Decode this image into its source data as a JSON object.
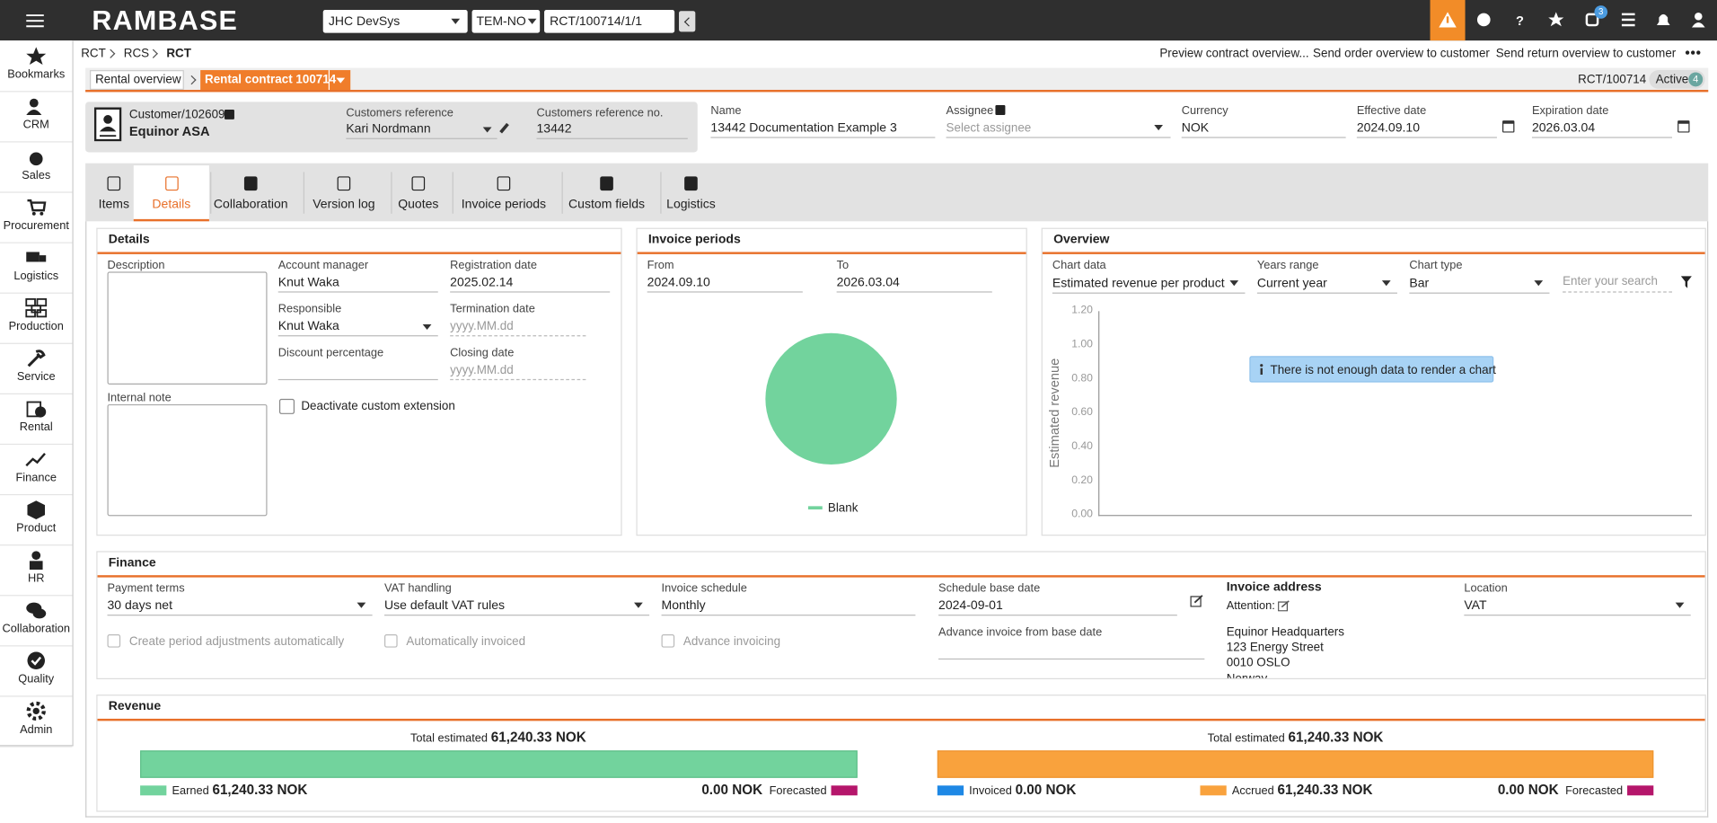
{
  "topbar": {
    "logo": "RAMBASE",
    "company": "JHC DevSys",
    "locale": "TEM-NO",
    "document": "RCT/100714/1/1",
    "notification_badge": "3"
  },
  "sidebar": [
    "Bookmarks",
    "CRM",
    "Sales",
    "Procurement",
    "Logistics",
    "Production",
    "Service",
    "Rental",
    "Finance",
    "Product",
    "HR",
    "Collaboration",
    "Quality",
    "Admin"
  ],
  "breadcrumb": [
    "RCT",
    "RCS",
    "RCT"
  ],
  "actions": [
    "Preview contract overview...",
    "Send order overview to customer",
    "Send return overview to customer"
  ],
  "nav_tabs": [
    "Rental overview",
    "Rental contract 100714"
  ],
  "status": {
    "id": "RCT/100714",
    "state": "Active",
    "count": "4"
  },
  "header": {
    "customer_label": "Customer/102609",
    "customer_name": "Equinor ASA",
    "customers_reference": {
      "label": "Customers reference",
      "value": "Kari Nordmann"
    },
    "customers_reference_no": {
      "label": "Customers reference no.",
      "value": "13442"
    },
    "name": {
      "label": "Name",
      "value": "13442 Documentation Example 3"
    },
    "assignee": {
      "label": "Assignee",
      "placeholder": "Select assignee"
    },
    "currency": {
      "label": "Currency",
      "value": "NOK"
    },
    "effective_date": {
      "label": "Effective date",
      "value": "2024.09.10"
    },
    "expiration_date": {
      "label": "Expiration date",
      "value": "2026.03.04"
    }
  },
  "tabs": [
    "Items",
    "Details",
    "Collaboration",
    "Version log",
    "Quotes",
    "Invoice periods",
    "Custom fields",
    "Logistics"
  ],
  "details": {
    "title": "Details",
    "description": "Description",
    "internal_note": "Internal note",
    "account_manager": {
      "label": "Account manager",
      "value": "Knut Waka"
    },
    "responsible": {
      "label": "Responsible",
      "value": "Knut Waka"
    },
    "discount_percentage": {
      "label": "Discount percentage"
    },
    "registration_date": {
      "label": "Registration date",
      "value": "2025.02.14"
    },
    "termination_date": {
      "label": "Termination date",
      "placeholder": "yyyy.MM.dd"
    },
    "closing_date": {
      "label": "Closing date",
      "placeholder": "yyyy.MM.dd"
    },
    "deactivate": "Deactivate custom extension"
  },
  "invoice_periods": {
    "title": "Invoice periods",
    "from": {
      "label": "From",
      "value": "2024.09.10"
    },
    "to": {
      "label": "To",
      "value": "2026.03.04"
    },
    "legend": "Blank"
  },
  "overview": {
    "title": "Overview",
    "chart_data": {
      "label": "Chart data",
      "value": "Estimated revenue per product"
    },
    "years_range": {
      "label": "Years range",
      "value": "Current year"
    },
    "chart_type": {
      "label": "Chart type",
      "value": "Bar"
    },
    "search_placeholder": "Enter your search",
    "y_label": "Estimated revenue",
    "y_ticks": [
      "1.20",
      "1.00",
      "0.80",
      "0.60",
      "0.40",
      "0.20",
      "0.00"
    ],
    "message": "There is not enough data to render a chart"
  },
  "finance": {
    "title": "Finance",
    "payment_terms": {
      "label": "Payment terms",
      "value": "30 days net"
    },
    "vat_handling": {
      "label": "VAT handling",
      "value": "Use default VAT rules"
    },
    "invoice_schedule": {
      "label": "Invoice schedule",
      "value": "Monthly"
    },
    "schedule_base_date": {
      "label": "Schedule base date",
      "value": "2024-09-01"
    },
    "advance_invoice": {
      "label": "Advance invoice from base date"
    },
    "checkboxes": [
      "Create period adjustments automatically",
      "Automatically invoiced",
      "Advance invoicing"
    ],
    "invoice_address": {
      "label": "Invoice address",
      "attention": "Attention:",
      "lines": [
        "Equinor Headquarters",
        "123 Energy Street",
        "0010 OSLO",
        "Norway"
      ]
    },
    "location": {
      "label": "Location",
      "value": "VAT"
    }
  },
  "revenue": {
    "title": "Revenue",
    "left": {
      "total_label": "Total estimated",
      "total": "61,240.33 NOK",
      "earned_label": "Earned",
      "earned": "61,240.33 NOK",
      "forecasted": "0.00 NOK",
      "forecasted_label": "Forecasted"
    },
    "right": {
      "total_label": "Total estimated",
      "total": "61,240.33 NOK",
      "invoiced_label": "Invoiced",
      "invoiced": "0.00 NOK",
      "accrued_label": "Accrued",
      "accrued": "61,240.33 NOK",
      "forecasted": "0.00 NOK",
      "forecasted_label": "Forecasted"
    }
  }
}
